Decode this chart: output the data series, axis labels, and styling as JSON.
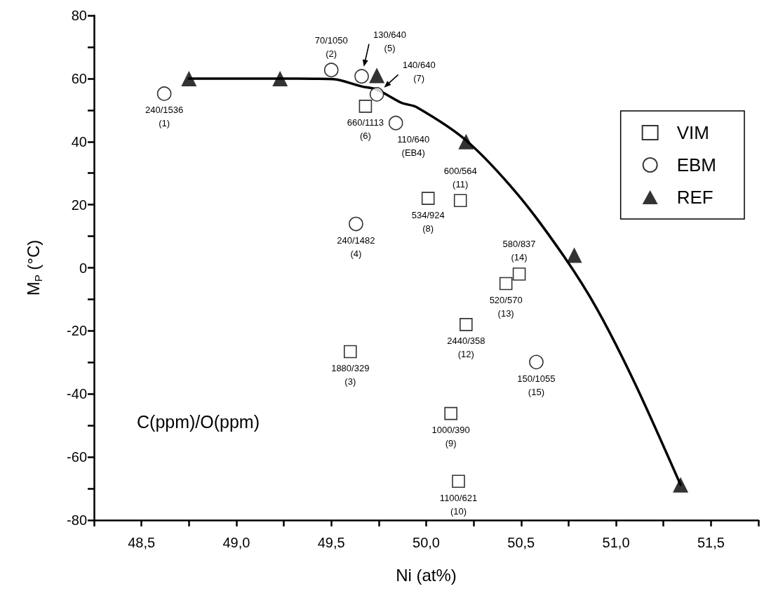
{
  "chart_data": {
    "type": "scatter",
    "xlabel": "Ni (at%)",
    "ylabel": "M$_{P}$ (°C)",
    "xlim": [
      48.25,
      51.75
    ],
    "xticks": [
      {
        "value": 48.25,
        "label": null
      },
      {
        "value": 48.5,
        "label": "48,5"
      },
      {
        "value": 48.75,
        "label": null
      },
      {
        "value": 49,
        "label": "49,0"
      },
      {
        "value": 49.25,
        "label": null
      },
      {
        "value": 49.5,
        "label": "49,5"
      },
      {
        "value": 49.75,
        "label": null
      },
      {
        "value": 50,
        "label": "50,0"
      },
      {
        "value": 50.25,
        "label": null
      },
      {
        "value": 50.5,
        "label": "50,5"
      },
      {
        "value": 50.75,
        "label": null
      },
      {
        "value": 51,
        "label": "51,0"
      },
      {
        "value": 51.25,
        "label": null
      },
      {
        "value": 51.5,
        "label": "51,5"
      },
      {
        "value": 51.75,
        "label": null
      }
    ],
    "ylim": [
      -80,
      80
    ],
    "yticks": [
      -80,
      {
        "value": -70,
        "label": null
      },
      -60,
      {
        "value": -50,
        "label": null
      },
      -40,
      {
        "value": -30,
        "label": null
      },
      -20,
      {
        "value": -10,
        "label": null
      },
      0,
      {
        "value": 10,
        "label": null
      },
      20,
      {
        "value": 30,
        "label": null
      },
      40,
      {
        "value": 50,
        "label": null
      },
      60,
      {
        "value": 70,
        "label": null
      },
      80
    ],
    "legend": "top right",
    "series": [
      {
        "name": "VIM",
        "marker": "square",
        "color": "#000000",
        "x": [
          49.68,
          50.01,
          50.18,
          50.49,
          50.42,
          50.21,
          49.6,
          50.13,
          50.17
        ],
        "values": [
          51.2,
          22.0,
          21.3,
          -2.0,
          -5.0,
          -18.0,
          -26.6,
          -46.2,
          -67.7
        ],
        "value_labels": [
          "660/1113\n(6)",
          "534/924\n(8)",
          "600/564\n(11)",
          "580/837\n(14)",
          "520/570\n(13)",
          "2440/358\n(12)",
          "1880/329\n(3)",
          "1000/390\n(9)",
          "1100/621\n(10)"
        ]
      },
      {
        "name": "EBM",
        "marker": "circle",
        "color": "#000000",
        "x": [
          48.62,
          49.5,
          49.66,
          49.74,
          49.84,
          49.63,
          50.58
        ],
        "values": [
          55.2,
          62.7,
          60.7,
          55.0,
          45.9,
          13.9,
          -29.9
        ],
        "value_labels": [
          "240/1536\n(1)",
          "70/1050\n(2)",
          "130/640\n(5)",
          "140/640\n(7)",
          "110/640\n(EB4)",
          "240/1482\n(4)",
          "150/1055\n(15)"
        ]
      },
      {
        "name": "REF",
        "marker": "triangle",
        "color": "#000000",
        "x": [
          48.75,
          49.23,
          49.74,
          50.21,
          50.78,
          51.34
        ],
        "values": [
          60,
          60,
          61,
          40,
          4,
          -68.8
        ]
      },
      {
        "type": "line",
        "marker": "none",
        "color": "#000000",
        "x": [
          48.75,
          49.0,
          49.23,
          49.41,
          49.51,
          49.66,
          49.74,
          49.87,
          49.95,
          50.21,
          50.48,
          50.72,
          50.9,
          51.1,
          51.34
        ],
        "values": [
          60,
          60,
          60,
          59.9,
          59.8,
          57.5,
          56.5,
          52.3,
          50.9,
          40.4,
          23.4,
          4.1,
          -13.1,
          -36.7,
          -68.8
        ]
      }
    ],
    "annotations": [
      "C(ppm)/O(ppm)"
    ]
  }
}
